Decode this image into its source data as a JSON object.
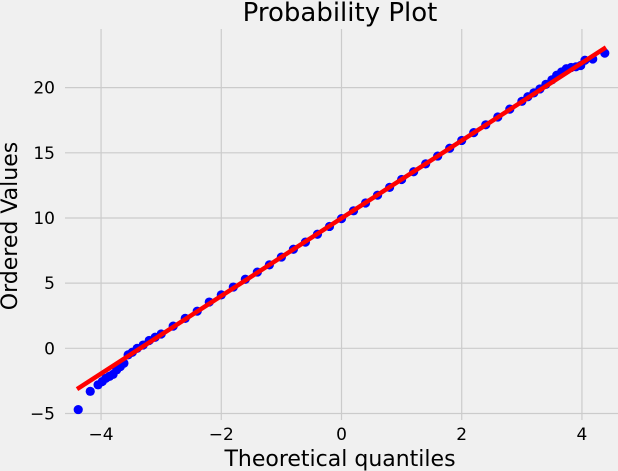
{
  "chart_data": {
    "type": "scatter",
    "title": "Probability Plot",
    "xlabel": "Theoretical quantiles",
    "ylabel": "Ordered Values",
    "xlim": [
      -4.6,
      4.6
    ],
    "ylim": [
      -5.5,
      24.5
    ],
    "x_ticks": [
      -4,
      -2,
      0,
      2,
      4
    ],
    "y_ticks": [
      -5,
      0,
      5,
      10,
      15,
      20
    ],
    "grid": true,
    "colors": {
      "points": "#0000ff",
      "fit": "#ff0000",
      "background": "#f0f0f0",
      "grid": "#cbcbcb"
    },
    "fit_line": {
      "slope": 2.98,
      "intercept": 9.98,
      "x": [
        -4.4,
        4.4
      ]
    },
    "series": [
      {
        "type": "scatter",
        "x": [
          -4.38,
          -4.18,
          -4.05,
          -3.98,
          -3.92,
          -3.86,
          -3.8,
          -3.74,
          -3.68,
          -3.62,
          -3.55,
          -3.48,
          -3.4,
          -3.3,
          -3.2,
          -3.1,
          -3.0,
          -2.8,
          -2.6,
          -2.4,
          -2.2,
          -2.0,
          -1.8,
          -1.6,
          -1.4,
          -1.2,
          -1.0,
          -0.8,
          -0.6,
          -0.4,
          -0.2,
          0.0,
          0.2,
          0.4,
          0.6,
          0.8,
          1.0,
          1.2,
          1.4,
          1.6,
          1.8,
          2.0,
          2.2,
          2.4,
          2.6,
          2.8,
          3.0,
          3.1,
          3.2,
          3.3,
          3.4,
          3.5,
          3.58,
          3.66,
          3.74,
          3.82,
          3.9,
          3.98,
          4.05,
          4.18,
          4.38
        ],
        "y": [
          -4.7,
          -3.3,
          -2.8,
          -2.55,
          -2.3,
          -2.15,
          -2.0,
          -1.65,
          -1.4,
          -1.15,
          -0.5,
          -0.3,
          0.0,
          0.25,
          0.6,
          0.85,
          1.1,
          1.7,
          2.3,
          2.85,
          3.55,
          4.1,
          4.7,
          5.3,
          5.85,
          6.4,
          7.0,
          7.6,
          8.15,
          8.75,
          9.35,
          9.95,
          10.55,
          11.15,
          11.75,
          12.35,
          12.95,
          13.55,
          14.15,
          14.75,
          15.35,
          15.95,
          16.55,
          17.15,
          17.75,
          18.35,
          18.95,
          19.3,
          19.6,
          19.9,
          20.25,
          20.6,
          20.95,
          21.2,
          21.45,
          21.55,
          21.6,
          21.7,
          22.1,
          22.2,
          22.65
        ]
      }
    ]
  }
}
